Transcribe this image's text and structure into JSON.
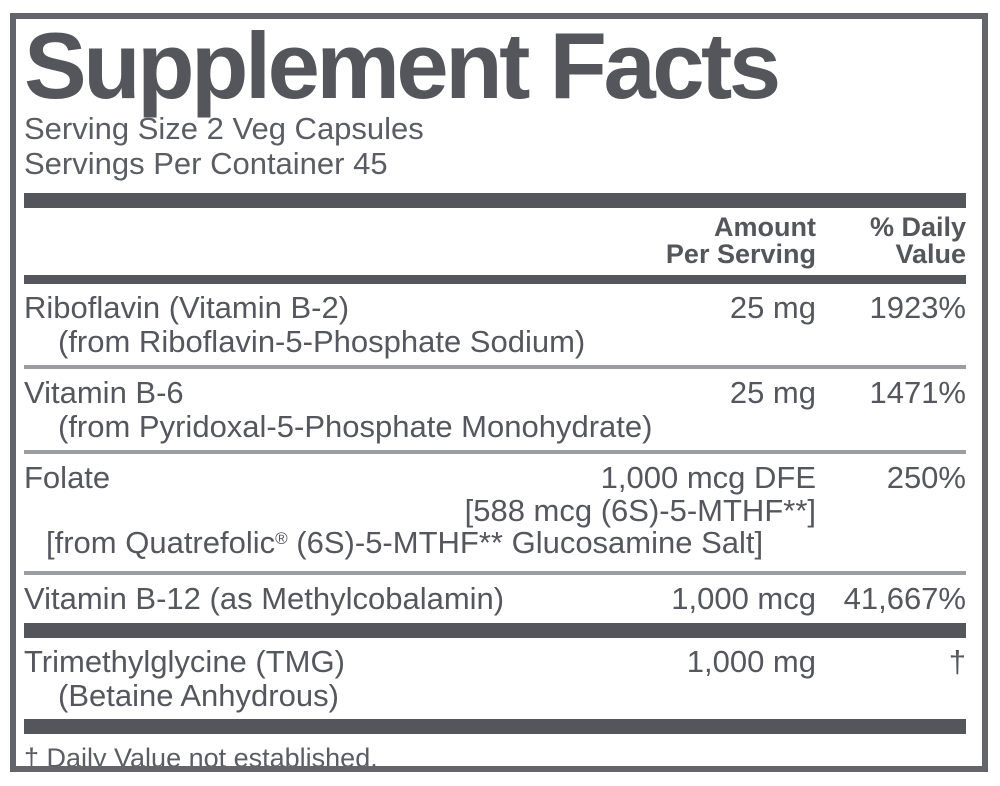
{
  "colors": {
    "ink": "#55575e",
    "bar": "#54565c",
    "separator": "#9b9da2",
    "border": "#63656b",
    "background": "#ffffff"
  },
  "panel": {
    "title": "Supplement Facts",
    "serving_size": "Serving Size 2 Veg Capsules",
    "servings_per_container": "Servings Per Container 45",
    "columns": {
      "amount_line1": "Amount",
      "amount_line2": "Per Serving",
      "daily_line1": "% Daily",
      "daily_line2": "Value"
    },
    "rows": [
      {
        "name": "Riboflavin (Vitamin B-2)",
        "detail": "(from Riboflavin-5-Phosphate Sodium)",
        "amount": "25 mg",
        "daily_value": "1923%"
      },
      {
        "name": "Vitamin B-6",
        "detail": "(from Pyridoxal-5-Phosphate Monohydrate)",
        "amount": "25 mg",
        "daily_value": "1471%"
      },
      {
        "name": "Folate",
        "amount": "1,000 mcg DFE",
        "amount_detail": "[588 mcg (6S)-5-MTHF**]",
        "source_prefix": "[from Quatrefolic",
        "source_reg_mark": "®",
        "source_suffix": " (6S)-5-MTHF** Glucosamine Salt]",
        "daily_value": "250%"
      },
      {
        "name": "Vitamin B-12 (as Methylcobalamin)",
        "amount": "1,000 mcg",
        "daily_value": "41,667%"
      },
      {
        "name": "Trimethylglycine (TMG)",
        "detail": "(Betaine Anhydrous)",
        "amount": "1,000 mg",
        "daily_value": "†"
      }
    ],
    "footnote": "† Daily Value not established."
  }
}
